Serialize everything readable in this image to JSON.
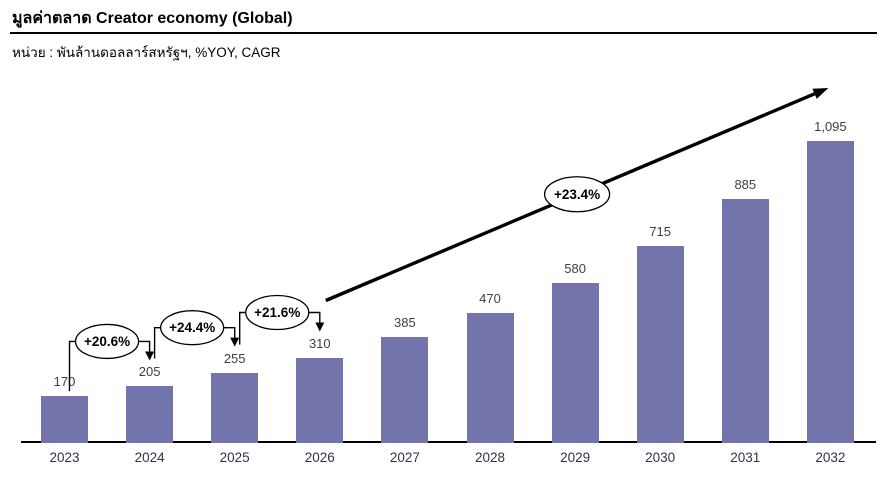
{
  "header": {
    "title": "มูลค่าตลาด Creator economy (Global)",
    "subtitle": "หน่วย : พันล้านดอลลาร์สหรัฐฯ, %YOY, CAGR"
  },
  "colors": {
    "bar": "#7274ab",
    "value_label": "#404040",
    "year_label": "#32324e",
    "annotation_stroke": "#000000",
    "ellipse_fill": "#ffffff"
  },
  "chart_data": {
    "type": "bar",
    "title": "มูลค่าตลาด Creator economy (Global)",
    "xlabel": "",
    "ylabel": "พันล้านดอลลาร์สหรัฐฯ",
    "unit_note": "หน่วย : พันล้านดอลลาร์สหรัฐฯ, %YOY, CAGR",
    "categories": [
      "2023",
      "2024",
      "2025",
      "2026",
      "2027",
      "2028",
      "2029",
      "2030",
      "2031",
      "2032"
    ],
    "values": [
      170,
      205,
      255,
      310,
      385,
      470,
      580,
      715,
      885,
      1095
    ],
    "value_labels": [
      "170",
      "205",
      "255",
      "310",
      "385",
      "470",
      "580",
      "715",
      "885",
      "1,095"
    ],
    "ylim": [
      0,
      1150
    ],
    "grid": false,
    "legend": false,
    "yoy_annotations": [
      {
        "from": "2023",
        "to": "2024",
        "label": "+20.6%"
      },
      {
        "from": "2024",
        "to": "2025",
        "label": "+24.4%"
      },
      {
        "from": "2025",
        "to": "2026",
        "label": "+21.6%"
      }
    ],
    "cagr_annotation": {
      "from": "2026",
      "to": "2032",
      "label": "+23.4%"
    }
  }
}
